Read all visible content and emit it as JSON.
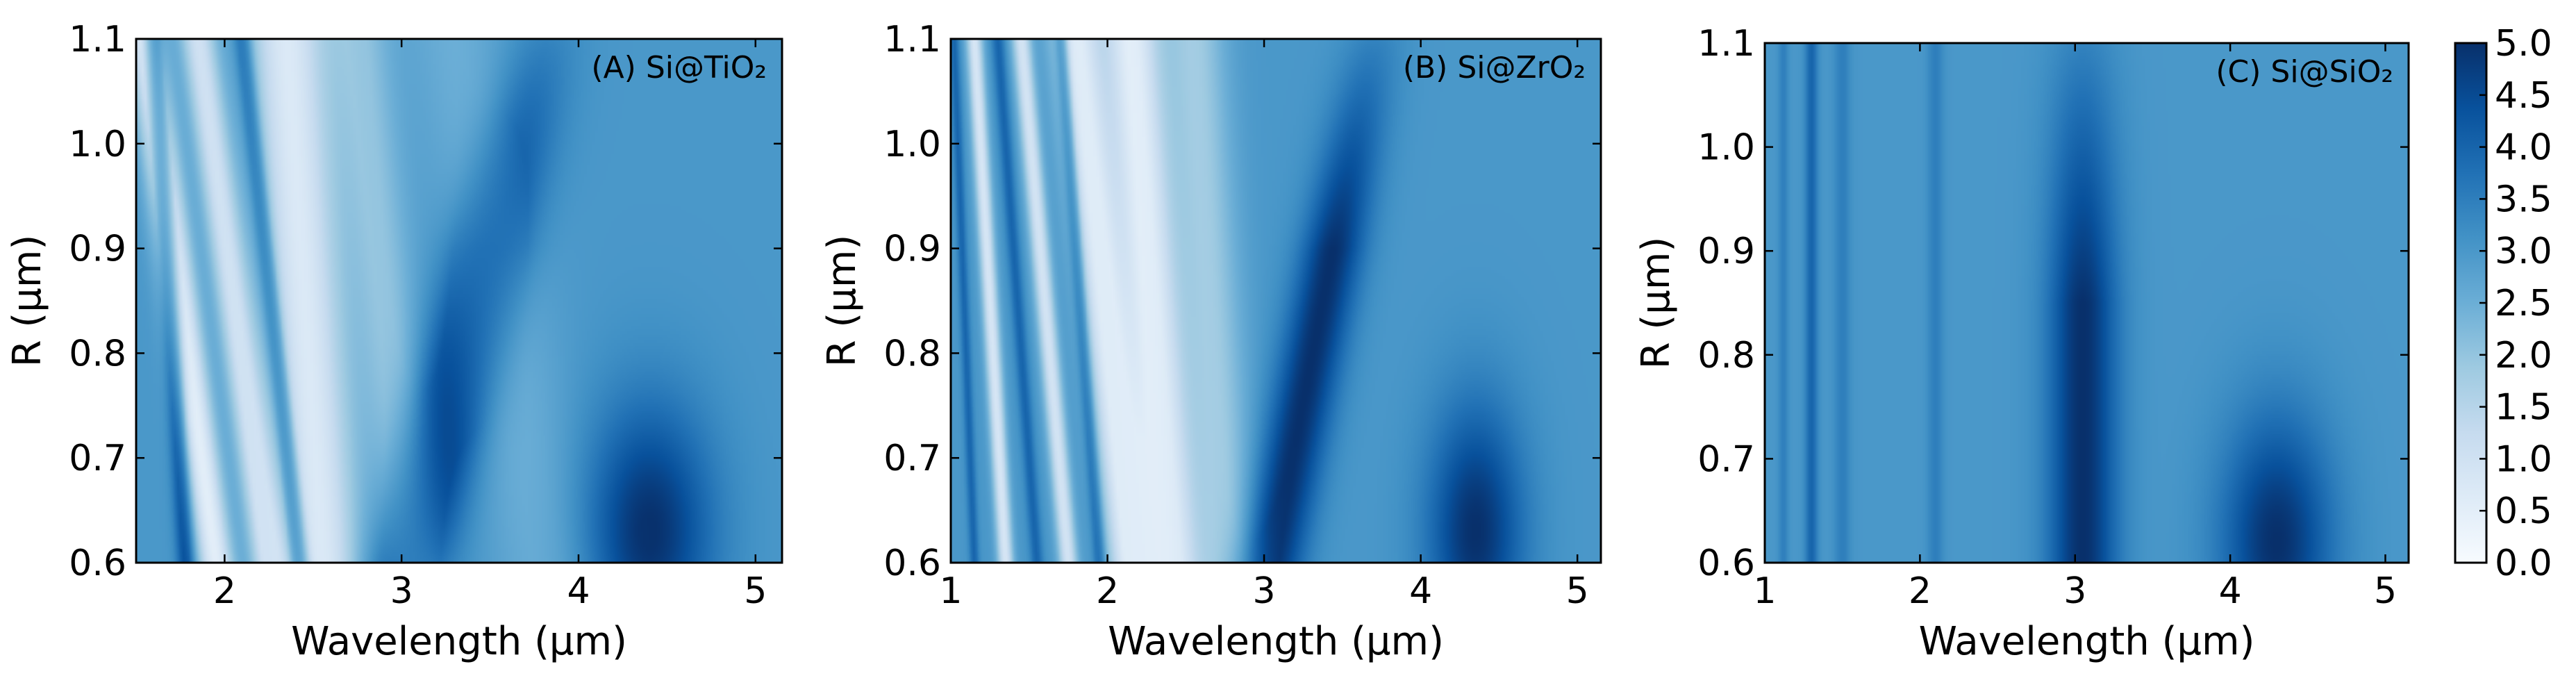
{
  "colors": {
    "colormap": [
      "#f7fbff",
      "#deebf7",
      "#c6dbef",
      "#9ecae1",
      "#6baed6",
      "#4292c6",
      "#2171b5",
      "#08519c",
      "#08306b"
    ]
  },
  "chart_data": [
    {
      "type": "heatmap",
      "panel": "A",
      "title": "(A) Si@TiO₂",
      "xlabel": "Wavelength (μm)",
      "ylabel": "R (μm)",
      "xlim": [
        1.5,
        5.15
      ],
      "ylim": [
        0.6,
        1.1
      ],
      "xticks": [
        2,
        3,
        4,
        5
      ],
      "xtick_labels": [
        "2",
        "3",
        "4",
        "5"
      ],
      "yticks": [
        0.6,
        0.7,
        0.8,
        0.9,
        1.0,
        1.1
      ],
      "ytick_labels": [
        "0.6",
        "0.7",
        "0.8",
        "0.9",
        "1.0",
        "1.1"
      ],
      "zlim": [
        0.0,
        5.0
      ],
      "features": [
        {
          "type": "ridge",
          "label": "bright band",
          "lambda_at_ymin": 1.95,
          "lambda_at_ymax": 1.55,
          "value": 0.5,
          "width": 0.1
        },
        {
          "type": "ridge",
          "label": "bright band",
          "lambda_at_ymin": 2.25,
          "lambda_at_ymax": 1.85,
          "value": 1.0,
          "width": 0.1
        },
        {
          "type": "ridge",
          "label": "broad bright band",
          "lambda_at_ymin": 2.55,
          "lambda_at_ymax": 2.35,
          "value": 0.7,
          "width": 0.22
        },
        {
          "type": "ridge",
          "label": "light band",
          "lambda_at_ymin": 3.05,
          "lambda_at_ymax": 2.75,
          "value": 2.0,
          "width": 0.18
        },
        {
          "type": "ridge",
          "label": "dark band",
          "lambda_at_ymin": 1.78,
          "lambda_at_ymax": 1.6,
          "value": 4.5,
          "width": 0.05
        },
        {
          "type": "ridge",
          "label": "dark band",
          "lambda_at_ymin": 2.42,
          "lambda_at_ymax": 2.1,
          "value": 4.3,
          "width": 0.05
        },
        {
          "type": "ridge",
          "label": "dark resonance",
          "lambda_at_ymin": 3.05,
          "lambda_at_ymax": 3.8,
          "value": 5.0,
          "width": 0.22,
          "fade_above": 0.9
        },
        {
          "type": "spot",
          "label": "dark spot",
          "lambda": 4.4,
          "r": 0.63,
          "value": 5.0,
          "width": 0.35
        },
        {
          "type": "ridge",
          "label": "light band",
          "lambda_at_ymin": 3.8,
          "lambda_at_ymax": 3.3,
          "value": 2.5,
          "width": 0.3
        }
      ]
    },
    {
      "type": "heatmap",
      "panel": "B",
      "title": "(B) Si@ZrO₂",
      "xlabel": "Wavelength (μm)",
      "ylabel": "R (μm)",
      "xlim": [
        1.0,
        5.15
      ],
      "ylim": [
        0.6,
        1.1
      ],
      "xticks": [
        1,
        2,
        3,
        4,
        5
      ],
      "xtick_labels": [
        "1",
        "2",
        "3",
        "4",
        "5"
      ],
      "yticks": [
        0.6,
        0.7,
        0.8,
        0.9,
        1.0,
        1.1
      ],
      "ytick_labels": [
        "0.6",
        "0.7",
        "0.8",
        "0.9",
        "1.0",
        "1.1"
      ],
      "zlim": [
        0.0,
        5.0
      ],
      "features": [
        {
          "type": "ridge",
          "label": "thin bands",
          "lambda_at_ymin": 1.15,
          "lambda_at_ymax": 1.02,
          "value": 4.0,
          "width": 0.03
        },
        {
          "type": "ridge",
          "label": "thin bands",
          "lambda_at_ymin": 1.35,
          "lambda_at_ymax": 1.15,
          "value": 0.8,
          "width": 0.05
        },
        {
          "type": "ridge",
          "label": "thin bands",
          "lambda_at_ymin": 1.55,
          "lambda_at_ymax": 1.3,
          "value": 4.0,
          "width": 0.04
        },
        {
          "type": "ridge",
          "label": "thin bands",
          "lambda_at_ymin": 1.75,
          "lambda_at_ymax": 1.45,
          "value": 0.9,
          "width": 0.06
        },
        {
          "type": "ridge",
          "label": "bright band",
          "lambda_at_ymin": 2.15,
          "lambda_at_ymax": 1.8,
          "value": 0.6,
          "width": 0.15
        },
        {
          "type": "ridge",
          "label": "bright band",
          "lambda_at_ymin": 2.4,
          "lambda_at_ymax": 2.15,
          "value": 0.5,
          "width": 0.18
        },
        {
          "type": "ridge",
          "label": "dark band",
          "lambda_at_ymin": 1.95,
          "lambda_at_ymax": 1.7,
          "value": 4.2,
          "width": 0.04
        },
        {
          "type": "ridge",
          "label": "dark resonance",
          "lambda_at_ymin": 3.05,
          "lambda_at_ymax": 3.7,
          "value": 5.0,
          "width": 0.2,
          "fade_above": 0.9
        },
        {
          "type": "spot",
          "label": "dark spot",
          "lambda": 4.35,
          "r": 0.63,
          "value": 5.0,
          "width": 0.3
        },
        {
          "type": "ridge",
          "label": "light band",
          "lambda_at_ymin": 2.75,
          "lambda_at_ymax": 2.55,
          "value": 1.8,
          "width": 0.2
        }
      ]
    },
    {
      "type": "heatmap",
      "panel": "C",
      "title": "(C) Si@SiO₂",
      "xlabel": "Wavelength (μm)",
      "ylabel": "R (μm)",
      "xlim": [
        1.0,
        5.15
      ],
      "ylim": [
        0.6,
        1.1
      ],
      "xticks": [
        1,
        2,
        3,
        4,
        5
      ],
      "xtick_labels": [
        "1",
        "2",
        "3",
        "4",
        "5"
      ],
      "yticks": [
        0.6,
        0.7,
        0.8,
        0.9,
        1.0,
        1.1
      ],
      "ytick_labels": [
        "0.6",
        "0.7",
        "0.8",
        "0.9",
        "1.0",
        "1.1"
      ],
      "zlim": [
        0.0,
        5.0
      ],
      "features": [
        {
          "type": "ridge",
          "label": "vertical band",
          "lambda_at_ymin": 1.12,
          "lambda_at_ymax": 1.12,
          "value": 3.5,
          "width": 0.03
        },
        {
          "type": "ridge",
          "label": "vertical band",
          "lambda_at_ymin": 1.3,
          "lambda_at_ymax": 1.3,
          "value": 4.0,
          "width": 0.04
        },
        {
          "type": "ridge",
          "label": "vertical band",
          "lambda_at_ymin": 1.5,
          "lambda_at_ymax": 1.5,
          "value": 3.5,
          "width": 0.05
        },
        {
          "type": "ridge",
          "label": "vertical band",
          "lambda_at_ymin": 1.7,
          "lambda_at_ymax": 1.7,
          "value": 3.0,
          "width": 0.04
        },
        {
          "type": "ridge",
          "label": "vertical band",
          "lambda_at_ymin": 2.1,
          "lambda_at_ymax": 2.1,
          "value": 3.5,
          "width": 0.05
        },
        {
          "type": "ridge",
          "label": "vertical band",
          "lambda_at_ymin": 2.3,
          "lambda_at_ymax": 2.3,
          "value": 3.0,
          "width": 0.06
        },
        {
          "type": "ridge",
          "label": "dark resonance",
          "lambda_at_ymin": 3.05,
          "lambda_at_ymax": 3.05,
          "value": 5.0,
          "width": 0.22,
          "fade_above": 0.85
        },
        {
          "type": "spot",
          "label": "dark spot",
          "lambda": 4.3,
          "r": 0.62,
          "value": 5.0,
          "width": 0.35
        }
      ]
    }
  ],
  "colorbar": {
    "min": 0.0,
    "max": 5.0,
    "ticks": [
      0.0,
      0.5,
      1.0,
      1.5,
      2.0,
      2.5,
      3.0,
      3.5,
      4.0,
      4.5,
      5.0
    ],
    "tick_labels": [
      "0.0",
      "0.5",
      "1.0",
      "1.5",
      "2.0",
      "2.5",
      "3.0",
      "3.5",
      "4.0",
      "4.5",
      "5.0"
    ]
  }
}
